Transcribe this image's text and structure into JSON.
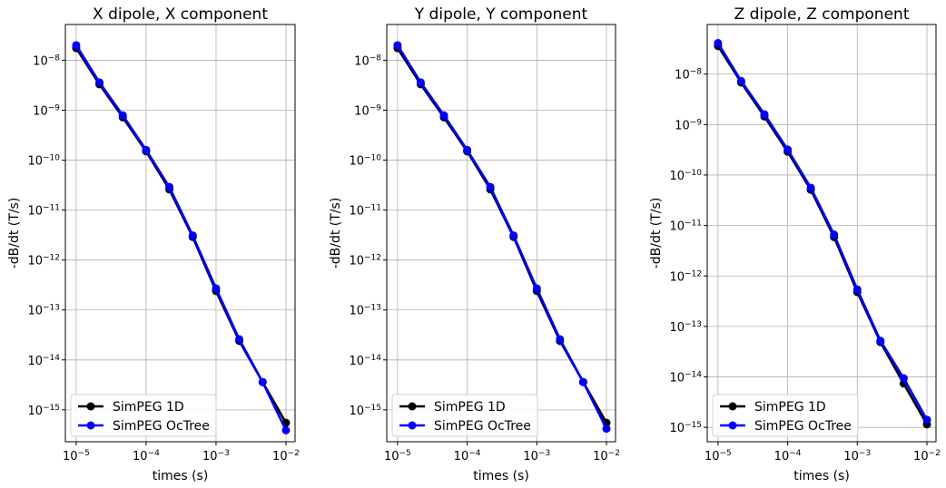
{
  "chart_data": [
    {
      "type": "line",
      "title": "X dipole, X component",
      "xlabel": "times (s)",
      "ylabel": "-dB/dt (T/s)",
      "xscale": "log",
      "yscale": "log",
      "xlim": [
        7e-06,
        0.0135
      ],
      "ylim": [
        2.3e-16,
        5.2e-08
      ],
      "xticks": [
        {
          "value": 1e-05,
          "base": "10",
          "exp": "−5"
        },
        {
          "value": 0.0001,
          "base": "10",
          "exp": "−4"
        },
        {
          "value": 0.001,
          "base": "10",
          "exp": "−3"
        },
        {
          "value": 0.01,
          "base": "10",
          "exp": "−2"
        }
      ],
      "yticks": [
        {
          "value": 1e-08,
          "base": "10",
          "exp": "−8"
        },
        {
          "value": 1e-09,
          "base": "10",
          "exp": "−9"
        },
        {
          "value": 1e-10,
          "base": "10",
          "exp": "−10"
        },
        {
          "value": 1e-11,
          "base": "10",
          "exp": "−11"
        },
        {
          "value": 1e-12,
          "base": "10",
          "exp": "−12"
        },
        {
          "value": 1e-13,
          "base": "10",
          "exp": "−13"
        },
        {
          "value": 1e-14,
          "base": "10",
          "exp": "−14"
        },
        {
          "value": 1e-15,
          "base": "10",
          "exp": "−15"
        }
      ],
      "grid": true,
      "legend_position": "lower-left",
      "x": [
        1e-05,
        2.15e-05,
        4.64e-05,
        0.0001,
        0.000215,
        0.000464,
        0.001,
        0.00215,
        0.00464,
        0.01
      ],
      "series": [
        {
          "name": "SimPEG 1D",
          "color": "#000000",
          "values": [
            1.75e-08,
            3.3e-09,
            7.2e-10,
            1.5e-10,
            2.6e-11,
            2.9e-12,
            2.4e-13,
            2.4e-14,
            3.6e-15,
            5.5e-16
          ]
        },
        {
          "name": "SimPEG OcTree",
          "color": "#0000ff",
          "values": [
            2e-08,
            3.6e-09,
            7.9e-10,
            1.6e-10,
            2.9e-11,
            3.1e-12,
            2.7e-13,
            2.6e-14,
            3.6e-15,
            3.9e-16
          ]
        }
      ]
    },
    {
      "type": "line",
      "title": "Y dipole, Y component",
      "xlabel": "times (s)",
      "ylabel": "-dB/dt (T/s)",
      "xscale": "log",
      "yscale": "log",
      "xlim": [
        7e-06,
        0.0135
      ],
      "ylim": [
        2.3e-16,
        5.2e-08
      ],
      "xticks": [
        {
          "value": 1e-05,
          "base": "10",
          "exp": "−5"
        },
        {
          "value": 0.0001,
          "base": "10",
          "exp": "−4"
        },
        {
          "value": 0.001,
          "base": "10",
          "exp": "−3"
        },
        {
          "value": 0.01,
          "base": "10",
          "exp": "−2"
        }
      ],
      "yticks": [
        {
          "value": 1e-08,
          "base": "10",
          "exp": "−8"
        },
        {
          "value": 1e-09,
          "base": "10",
          "exp": "−9"
        },
        {
          "value": 1e-10,
          "base": "10",
          "exp": "−10"
        },
        {
          "value": 1e-11,
          "base": "10",
          "exp": "−11"
        },
        {
          "value": 1e-12,
          "base": "10",
          "exp": "−12"
        },
        {
          "value": 1e-13,
          "base": "10",
          "exp": "−13"
        },
        {
          "value": 1e-14,
          "base": "10",
          "exp": "−14"
        },
        {
          "value": 1e-15,
          "base": "10",
          "exp": "−15"
        }
      ],
      "grid": true,
      "legend_position": "lower-left",
      "x": [
        1e-05,
        2.15e-05,
        4.64e-05,
        0.0001,
        0.000215,
        0.000464,
        0.001,
        0.00215,
        0.00464,
        0.01
      ],
      "series": [
        {
          "name": "SimPEG 1D",
          "color": "#000000",
          "values": [
            1.75e-08,
            3.3e-09,
            7.2e-10,
            1.5e-10,
            2.6e-11,
            2.9e-12,
            2.4e-13,
            2.4e-14,
            3.6e-15,
            5.5e-16
          ]
        },
        {
          "name": "SimPEG OcTree",
          "color": "#0000ff",
          "values": [
            2e-08,
            3.6e-09,
            7.9e-10,
            1.6e-10,
            2.9e-11,
            3.1e-12,
            2.7e-13,
            2.6e-14,
            3.6e-15,
            4.2e-16
          ]
        }
      ]
    },
    {
      "type": "line",
      "title": "Z dipole, Z component",
      "xlabel": "times (s)",
      "ylabel": "-dB/dt (T/s)",
      "xscale": "log",
      "yscale": "log",
      "xlim": [
        7e-06,
        0.0135
      ],
      "ylim": [
        5.2e-16,
        9.6e-08
      ],
      "xticks": [
        {
          "value": 1e-05,
          "base": "10",
          "exp": "−5"
        },
        {
          "value": 0.0001,
          "base": "10",
          "exp": "−4"
        },
        {
          "value": 0.001,
          "base": "10",
          "exp": "−3"
        },
        {
          "value": 0.01,
          "base": "10",
          "exp": "−2"
        }
      ],
      "yticks": [
        {
          "value": 1e-08,
          "base": "10",
          "exp": "−8"
        },
        {
          "value": 1e-09,
          "base": "10",
          "exp": "−9"
        },
        {
          "value": 1e-10,
          "base": "10",
          "exp": "−10"
        },
        {
          "value": 1e-11,
          "base": "10",
          "exp": "−11"
        },
        {
          "value": 1e-12,
          "base": "10",
          "exp": "−12"
        },
        {
          "value": 1e-13,
          "base": "10",
          "exp": "−13"
        },
        {
          "value": 1e-14,
          "base": "10",
          "exp": "−14"
        },
        {
          "value": 1e-15,
          "base": "10",
          "exp": "−15"
        }
      ],
      "grid": true,
      "legend_position": "lower-left",
      "x": [
        1e-05,
        2.15e-05,
        4.64e-05,
        0.0001,
        0.000215,
        0.000464,
        0.001,
        0.00215,
        0.00464,
        0.01
      ],
      "series": [
        {
          "name": "SimPEG 1D",
          "color": "#000000",
          "values": [
            3.6e-08,
            6.8e-09,
            1.45e-09,
            2.9e-10,
            5.1e-11,
            5.9e-12,
            4.8e-13,
            4.9e-14,
            7.4e-15,
            1.15e-15
          ]
        },
        {
          "name": "SimPEG OcTree",
          "color": "#0000ff",
          "values": [
            4.1e-08,
            7.3e-09,
            1.6e-09,
            3.2e-10,
            5.6e-11,
            6.6e-12,
            5.4e-13,
            5.2e-14,
            9.4e-15,
            1.42e-15
          ]
        }
      ]
    }
  ]
}
